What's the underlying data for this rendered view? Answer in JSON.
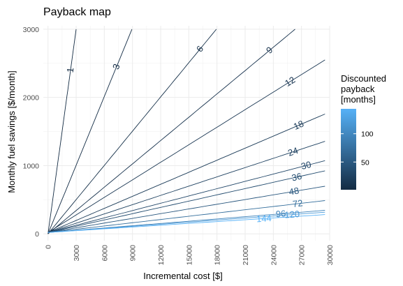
{
  "chart_data": {
    "type": "contour",
    "title": "Payback map",
    "xlabel": "Incremental cost [$]",
    "ylabel": "Monthly fuel savings [$/month]",
    "xlim": [
      -500,
      30000
    ],
    "ylim": [
      -100,
      3050
    ],
    "x_ticks": [
      0,
      3000,
      6000,
      9000,
      12000,
      15000,
      18000,
      21000,
      24000,
      27000,
      30000
    ],
    "x_tick_labels": [
      "0",
      "3000",
      "6000",
      "9000",
      "12000",
      "15000",
      "18000",
      "21000",
      "24000",
      "27000",
      "30000"
    ],
    "y_ticks": [
      0,
      1000,
      2000,
      3000
    ],
    "y_tick_labels": [
      "0",
      "1000",
      "2000",
      "3000"
    ],
    "grid": true,
    "legend": {
      "title": "Discounted payback [months]",
      "title_lines": [
        "Discounted",
        "payback",
        "[months]"
      ],
      "position": "right",
      "range": [
        1,
        144
      ],
      "ticks": [
        50,
        100
      ],
      "tick_labels": [
        "50",
        "100"
      ],
      "color_low": "#132B43",
      "color_high": "#56B1F7"
    },
    "contours": [
      {
        "level": 1,
        "label": "1",
        "label_x": 2400,
        "label_y": 2400
      },
      {
        "level": 3,
        "label": "3",
        "label_x": 7300,
        "label_y": 2450
      },
      {
        "level": 6,
        "label": "6",
        "label_x": 16200,
        "label_y": 2710
      },
      {
        "level": 9,
        "label": "9",
        "label_x": 23600,
        "label_y": 2690
      },
      {
        "level": 12,
        "label": "12",
        "label_x": 25800,
        "label_y": 2230
      },
      {
        "level": 18,
        "label": "18",
        "label_x": 26700,
        "label_y": 1590
      },
      {
        "level": 24,
        "label": "24",
        "label_x": 26100,
        "label_y": 1200
      },
      {
        "level": 30,
        "label": "30",
        "label_x": 27500,
        "label_y": 1000
      },
      {
        "level": 36,
        "label": "36",
        "label_x": 26500,
        "label_y": 830
      },
      {
        "level": 48,
        "label": "48",
        "label_x": 26200,
        "label_y": 620
      },
      {
        "level": 72,
        "label": "72",
        "label_x": 26600,
        "label_y": 440
      },
      {
        "level": 96,
        "label": "96",
        "label_x": 24800,
        "label_y": 290
      },
      {
        "level": 120,
        "label": "120",
        "label_x": 26000,
        "label_y": 280
      },
      {
        "level": 144,
        "label": "144",
        "label_x": 23000,
        "label_y": 220
      }
    ]
  }
}
